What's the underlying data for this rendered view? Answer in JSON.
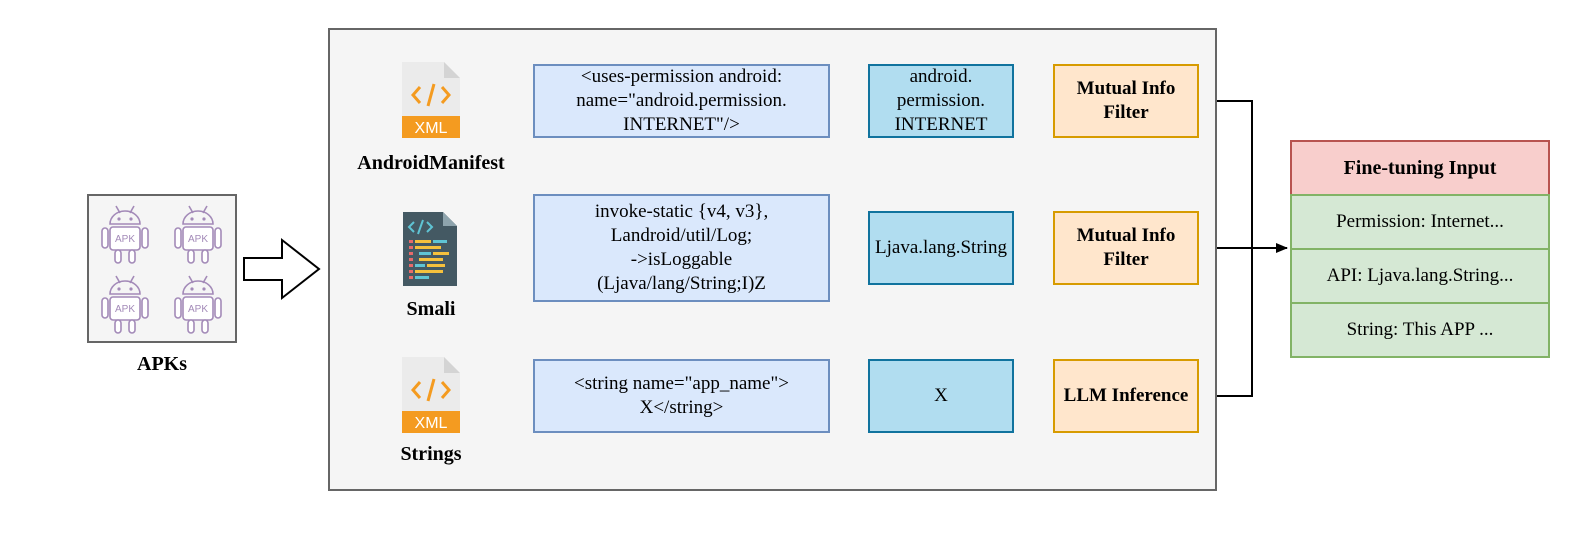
{
  "inputs": {
    "apks_label": "APKs",
    "apk_icon_text": "APK"
  },
  "rows": [
    {
      "source_label": "AndroidManifest",
      "file_badge": "XML",
      "code_text": "<uses-permission android:\nname=\"android.permission.\nINTERNET\"/>",
      "token_text": "android.\npermission.\nINTERNET",
      "process_label": "Mutual Info\nFilter"
    },
    {
      "source_label": "Smali",
      "file_badge": "",
      "code_text": "invoke-static {v4, v3},\nLandroid/util/Log;\n->isLoggable\n(Ljava/lang/String;I)Z",
      "token_text": "Ljava.lang.String",
      "process_label": "Mutual Info\nFilter"
    },
    {
      "source_label": "Strings",
      "file_badge": "XML",
      "code_text": "<string name=\"app_name\">\nX</string>",
      "token_text": "X",
      "process_label": "LLM Inference"
    }
  ],
  "fine_tuning": {
    "header": "Fine-tuning Input",
    "items": [
      "Permission: Internet...",
      "API: Ljava.lang.String...",
      "String: This APP ..."
    ]
  },
  "colors": {
    "code_fill": "#dae8fc",
    "token_fill": "#b1ddf0",
    "filter_fill": "#ffe6cc",
    "header_fill": "#f8cecc",
    "item_fill": "#d5e8d4",
    "android_icon": "#a38ab8",
    "xml_orange": "#f49b20"
  }
}
